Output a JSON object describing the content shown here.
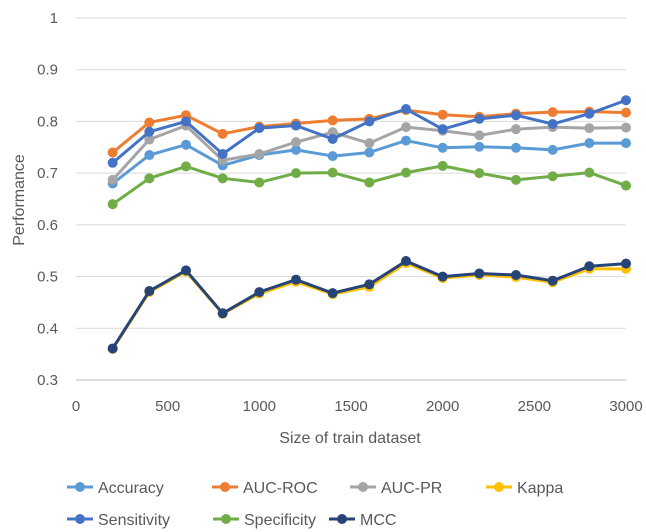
{
  "chart_data": {
    "type": "line",
    "title": "",
    "xlabel": "Size of train dataset",
    "ylabel": "Performance",
    "xlim": [
      0,
      3000
    ],
    "ylim": [
      0.3,
      1
    ],
    "x_ticks": [
      0,
      500,
      1000,
      1500,
      2000,
      2500,
      3000
    ],
    "y_ticks": [
      0.3,
      0.4,
      0.5,
      0.6,
      0.7,
      0.8,
      0.9,
      1
    ],
    "x_tick_labels": [
      "0",
      "500",
      "1000",
      "1500",
      "2000",
      "2500",
      "3000"
    ],
    "y_tick_labels": [
      "0.3",
      "0.4",
      "0.5",
      "0.6",
      "0.7",
      "0.8",
      "0.9",
      "1"
    ],
    "grid": "horizontal",
    "legend_position": "bottom",
    "x": [
      200,
      400,
      600,
      800,
      1000,
      1200,
      1400,
      1600,
      1800,
      2000,
      2200,
      2400,
      2600,
      2800,
      3000
    ],
    "series": [
      {
        "name": "Accuracy",
        "color": "#5b9bd5",
        "values": [
          0.68,
          0.735,
          0.755,
          0.715,
          0.735,
          0.745,
          0.733,
          0.74,
          0.763,
          0.749,
          0.751,
          0.749,
          0.745,
          0.758,
          0.758
        ]
      },
      {
        "name": "AUC-ROC",
        "color": "#ed7d31",
        "values": [
          0.74,
          0.798,
          0.812,
          0.776,
          0.79,
          0.796,
          0.802,
          0.805,
          0.822,
          0.813,
          0.809,
          0.815,
          0.818,
          0.819,
          0.817
        ]
      },
      {
        "name": "AUC-PR",
        "color": "#a5a5a5",
        "values": [
          0.687,
          0.765,
          0.792,
          0.725,
          0.737,
          0.76,
          0.779,
          0.758,
          0.789,
          0.782,
          0.773,
          0.785,
          0.789,
          0.787,
          0.788
        ]
      },
      {
        "name": "Kappa",
        "color": "#ffc000",
        "values": [
          0.36,
          0.47,
          0.51,
          0.428,
          0.467,
          0.49,
          0.466,
          0.48,
          0.526,
          0.497,
          0.503,
          0.499,
          0.489,
          0.515,
          0.515
        ]
      },
      {
        "name": "Sensitivity",
        "color": "#4472c4",
        "values": [
          0.72,
          0.78,
          0.8,
          0.737,
          0.787,
          0.792,
          0.766,
          0.8,
          0.824,
          0.785,
          0.805,
          0.812,
          0.795,
          0.815,
          0.841
        ]
      },
      {
        "name": "Specificity",
        "color": "#70ad47",
        "values": [
          0.64,
          0.69,
          0.713,
          0.69,
          0.682,
          0.7,
          0.701,
          0.682,
          0.701,
          0.714,
          0.7,
          0.687,
          0.694,
          0.701,
          0.676
        ]
      },
      {
        "name": "MCC",
        "color": "#264478",
        "values": [
          0.361,
          0.472,
          0.512,
          0.429,
          0.47,
          0.494,
          0.468,
          0.485,
          0.53,
          0.5,
          0.506,
          0.503,
          0.492,
          0.52,
          0.525
        ]
      }
    ]
  }
}
